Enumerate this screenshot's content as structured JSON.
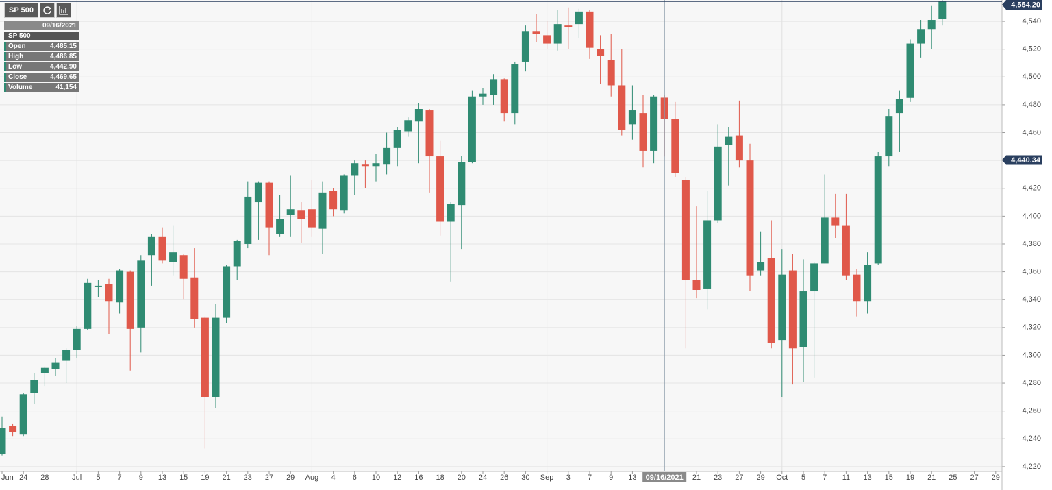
{
  "toolbar": {
    "symbol": "SP 500"
  },
  "info": {
    "date": "09/16/2021",
    "symbol": "SP 500",
    "rows": [
      {
        "label": "Open",
        "value": "4,485.15"
      },
      {
        "label": "High",
        "value": "4,486.85"
      },
      {
        "label": "Low",
        "value": "4,442.90"
      },
      {
        "label": "Close",
        "value": "4,469.65"
      },
      {
        "label": "Volume",
        "value": "41,154"
      }
    ]
  },
  "chart_data": {
    "type": "candlestick",
    "categories": [
      "Jun",
      null,
      "24",
      null,
      "28",
      null,
      null,
      "Jul",
      null,
      "5",
      null,
      "7",
      null,
      "9",
      null,
      "13",
      null,
      "15",
      null,
      "19",
      null,
      "21",
      null,
      "23",
      null,
      "27",
      null,
      "29",
      null,
      "Aug",
      null,
      "4",
      null,
      "6",
      null,
      "10",
      null,
      "12",
      null,
      "16",
      null,
      "18",
      null,
      "20",
      null,
      "24",
      null,
      "26",
      null,
      "30",
      null,
      "Sep",
      null,
      "3",
      null,
      "7",
      null,
      "9",
      null,
      "13",
      null,
      null,
      "09/16/2021",
      null,
      null,
      "21",
      null,
      "23",
      null,
      "27",
      null,
      "29",
      null,
      "Oct",
      null,
      "5",
      null,
      "7",
      null,
      "11",
      null,
      "13",
      null,
      "15",
      null,
      "19",
      null,
      "21",
      null,
      "25",
      null,
      "27",
      null,
      "29"
    ],
    "open": [
      4229,
      4249,
      4243,
      4273,
      4287,
      4290,
      4296,
      4304,
      4319,
      4349,
      4351,
      4338,
      4360,
      4320,
      4372,
      4385,
      4367,
      4372,
      4356,
      4327,
      4270,
      4327,
      4364,
      4380,
      4410,
      4424,
      4387,
      4401,
      4404,
      4405,
      4391,
      4418,
      4404,
      4429,
      4437,
      4436,
      4437,
      4449,
      4461,
      4468,
      4476,
      4443,
      4396,
      4408,
      4439,
      4486,
      4487,
      4498,
      4474,
      4511,
      4533,
      4530,
      4524,
      4537,
      4538,
      4547,
      4520,
      4512,
      4494,
      4466,
      4474,
      4447,
      4485.15,
      4470,
      4426,
      4354,
      4348,
      4397,
      4451,
      4458,
      4440,
      4361,
      4370,
      4311,
      4361,
      4306,
      4346,
      4366,
      4399,
      4393,
      4358,
      4339,
      4366,
      4443,
      4474,
      4485,
      4524,
      4534,
      4542,
      null,
      null,
      null,
      null,
      null
    ],
    "high": [
      4256,
      4251,
      4273,
      4287,
      4292,
      4298,
      4305,
      4321,
      4355,
      4354,
      4355,
      4362,
      4361,
      4372,
      4387,
      4392,
      4393,
      4373,
      4377,
      4328,
      4337,
      4365,
      4383,
      4425,
      4425,
      4425,
      4415,
      4429,
      4410,
      4426,
      4425,
      4420,
      4430,
      4440,
      4440,
      4445,
      4460,
      4464,
      4471,
      4481,
      4477,
      4454,
      4410,
      4443,
      4490,
      4492,
      4502,
      4499,
      4511,
      4537,
      4545,
      4540,
      4548,
      4550,
      4549,
      4548,
      4530,
      4531,
      4520,
      4494,
      4487,
      4487,
      4486.85,
      4482,
      4428,
      4407,
      4418,
      4466,
      4464,
      4483,
      4452,
      4389,
      4397,
      4376,
      4373,
      4369,
      4367,
      4430,
      4416,
      4416,
      4362,
      4374,
      4446,
      4477,
      4490,
      4527,
      4541,
      4551,
      4556,
      null,
      null,
      null,
      null,
      null
    ],
    "low": [
      4228,
      4242,
      4242,
      4265,
      4278,
      4285,
      4280,
      4298,
      4318,
      4342,
      4315,
      4330,
      4289,
      4302,
      4350,
      4366,
      4357,
      4340,
      4320,
      4233,
      4262,
      4323,
      4354,
      4377,
      4383,
      4372,
      4385,
      4385,
      4381,
      4385,
      4373,
      4400,
      4402,
      4415,
      4420,
      4425,
      4430,
      4436,
      4457,
      4438,
      4417,
      4386,
      4353,
      4376,
      4438,
      4480,
      4480,
      4468,
      4466,
      4504,
      4525,
      4520,
      4519,
      4520,
      4528,
      4513,
      4495,
      4486,
      4458,
      4455,
      4435,
      4438,
      4442.9,
      4428,
      4305,
      4341,
      4333,
      4395,
      4422,
      4435,
      4346,
      4357,
      4305,
      4270,
      4279,
      4281,
      4284,
      4366,
      4384,
      4354,
      4328,
      4330,
      4365,
      4436,
      4446,
      4482,
      4514,
      4520,
      4537,
      null,
      null,
      null,
      null,
      null
    ],
    "close": [
      4248,
      4245,
      4272,
      4282,
      4291,
      4295,
      4304,
      4319,
      4352,
      4350,
      4339,
      4361,
      4319,
      4368,
      4385,
      4368,
      4374,
      4355,
      4326,
      4270,
      4327,
      4364,
      4382,
      4414,
      4424,
      4392,
      4398,
      4405,
      4398,
      4392,
      4417,
      4405,
      4429,
      4438,
      4436,
      4438,
      4449,
      4462,
      4469,
      4477,
      4443,
      4396,
      4409,
      4439,
      4486,
      4488,
      4498,
      4474,
      4509,
      4533,
      4531,
      4524,
      4538,
      4536,
      4547,
      4521,
      4515,
      4494,
      4462,
      4476,
      4447,
      4486,
      4469.65,
      4431,
      4354,
      4347,
      4397,
      4450,
      4457,
      4440,
      4357,
      4367,
      4309,
      4358,
      4305,
      4346,
      4366,
      4399,
      4393,
      4357,
      4339,
      4365,
      4443,
      4472,
      4484,
      4524,
      4534,
      4541,
      4554.2,
      null,
      null,
      null,
      null,
      null
    ],
    "up_color": "#2f8b72",
    "down_color": "#e0584a",
    "ylim": [
      4216.5,
      4555.3
    ],
    "yticks": [
      {
        "value": 4220,
        "label": "4,220"
      },
      {
        "value": 4240,
        "label": "4,240"
      },
      {
        "value": 4260,
        "label": "4,260"
      },
      {
        "value": 4280,
        "label": "4,280"
      },
      {
        "value": 4300,
        "label": "4,300"
      },
      {
        "value": 4320,
        "label": "4,320"
      },
      {
        "value": 4340,
        "label": "4,340"
      },
      {
        "value": 4360,
        "label": "4,360"
      },
      {
        "value": 4380,
        "label": "4,380"
      },
      {
        "value": 4400,
        "label": "4,400"
      },
      {
        "value": 4420,
        "label": "4,420"
      },
      {
        "value": 4440,
        "label": "4,440"
      },
      {
        "value": 4460,
        "label": "4,460"
      },
      {
        "value": 4480,
        "label": "4,480"
      },
      {
        "value": 4500,
        "label": "4,500"
      },
      {
        "value": 4520,
        "label": "4,520"
      },
      {
        "value": 4540,
        "label": "4,540"
      }
    ],
    "last_price": {
      "value": 4554.2,
      "label": "4,554.20"
    },
    "crosshair_price": {
      "value": 4440.34,
      "label": "4,440.34"
    },
    "grid": true
  }
}
